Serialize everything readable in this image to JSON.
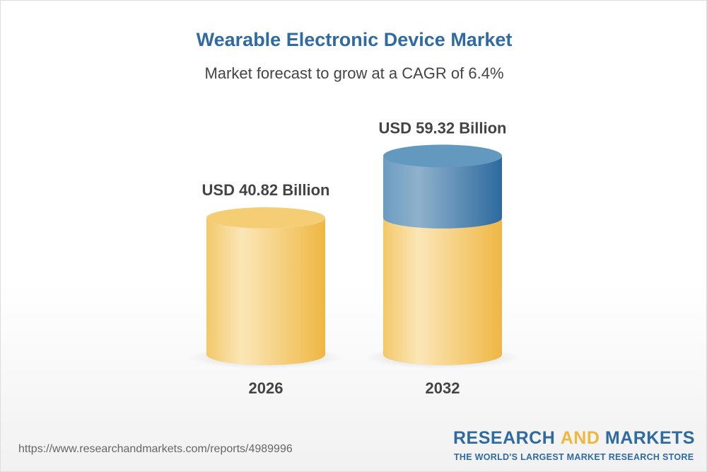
{
  "header": {
    "title": "Wearable Electronic Device Market",
    "subtitle": "Market forecast to grow at a CAGR of 6.4%"
  },
  "chart_data": {
    "type": "bar",
    "style": "3d-cylinder",
    "categories": [
      "2026",
      "2032"
    ],
    "values": [
      40.82,
      59.32
    ],
    "data_labels": [
      "USD 40.82 Billion",
      "USD 59.32 Billion"
    ],
    "unit": "USD Billion",
    "colors": {
      "base": "#f0c060",
      "growth": "#5b8fba"
    },
    "grid": false
  },
  "footer": {
    "url": "https://www.researchandmarkets.com/reports/4989996",
    "logo_a": "RESEARCH ",
    "logo_b": "AND",
    "logo_c": " MARKETS",
    "tagline": "THE WORLD'S LARGEST MARKET RESEARCH STORE"
  }
}
